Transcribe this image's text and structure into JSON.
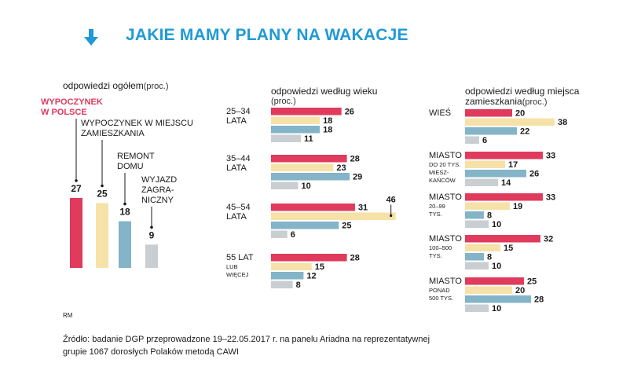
{
  "title": "JAKIE MAMY PLANY NA WAKACJE",
  "colors": {
    "accent": "#1f9ad6",
    "red": "#e03a5c",
    "yellow": "#f6e2a8",
    "blue": "#83b4c8",
    "grey": "#c9ced2"
  },
  "icons": {
    "header": "arrow-down-icon"
  },
  "rm": "RM",
  "source_line1": "Źródło: badanie DGP przeprowadzone 19–22.05.2017 r. na panelu Ariadna na reprezentatywnej",
  "source_line2": "grupie 1067 dorosłych Polaków metodą CAWI",
  "chart_data": [
    {
      "type": "bar",
      "title": "odpowiedzi ogółem",
      "unit": "(proc.)",
      "categories": [
        "WYPOCZYNEK W POLSCE",
        "WYPOCZYNEK W MIEJSCU ZAMIESZKANIA",
        "REMONT DOMU",
        "WYJAZD ZAGRANICZNY"
      ],
      "category_lines": [
        [
          "WYPOCZYNEK",
          "W POLSCE"
        ],
        [
          "WYPOCZYNEK W MIEJSCU",
          "ZAMIESZKANIA"
        ],
        [
          "REMONT",
          "DOMU"
        ],
        [
          "WYJAZD",
          "ZAGRA-",
          "NICZNY"
        ]
      ],
      "values": [
        27,
        25,
        18,
        9
      ],
      "colors": [
        "#e03a5c",
        "#f6e2a8",
        "#83b4c8",
        "#c9ced2"
      ]
    },
    {
      "type": "bar",
      "orientation": "horizontal",
      "title": "odpowiedzi według wieku",
      "unit": "(proc.)",
      "groups": [
        {
          "label": [
            "25–34",
            "LATA"
          ],
          "small": [],
          "values": [
            26,
            18,
            18,
            11
          ]
        },
        {
          "label": [
            "35–44",
            "LATA"
          ],
          "small": [],
          "values": [
            28,
            23,
            29,
            10
          ]
        },
        {
          "label": [
            "45–54",
            "LATA"
          ],
          "small": [],
          "values": [
            31,
            46,
            25,
            6
          ]
        },
        {
          "label": [
            "55 LAT"
          ],
          "small": [
            "LUB",
            "WIĘCEJ"
          ],
          "values": [
            28,
            15,
            12,
            8
          ]
        }
      ]
    },
    {
      "type": "bar",
      "orientation": "horizontal",
      "title": "odpowiedzi według miejsca zamieszkania",
      "unit": "(proc.)",
      "groups": [
        {
          "label": [
            "WIEŚ"
          ],
          "small": [],
          "values": [
            20,
            38,
            22,
            6
          ]
        },
        {
          "label": [
            "MIASTO"
          ],
          "small": [
            "DO 20 TYS.",
            "MIESZ-",
            "KAŃCÓW"
          ],
          "values": [
            33,
            17,
            26,
            14
          ]
        },
        {
          "label": [
            "MIASTO"
          ],
          "small": [
            "20–99",
            "TYS."
          ],
          "values": [
            33,
            19,
            8,
            10
          ]
        },
        {
          "label": [
            "MIASTO"
          ],
          "small": [
            "100–500",
            "TYS."
          ],
          "values": [
            32,
            15,
            8,
            10
          ]
        },
        {
          "label": [
            "MIASTO"
          ],
          "small": [
            "PONAD",
            "500 TYS."
          ],
          "values": [
            25,
            20,
            28,
            10
          ]
        }
      ]
    }
  ]
}
